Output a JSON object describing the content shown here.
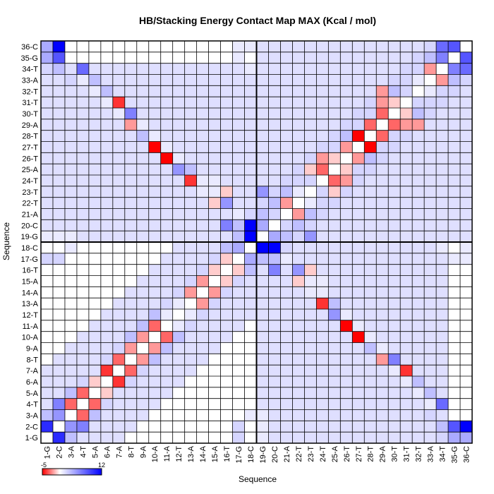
{
  "chart_data": {
    "type": "heatmap",
    "title": "HB/Stacking Energy Contact Map MAX (Kcal / mol)",
    "xlabel": "Sequence",
    "ylabel": "Sequence",
    "labels": [
      "1-G",
      "2-C",
      "3-A",
      "4-T",
      "5-A",
      "6-A",
      "7-A",
      "8-T",
      "9-A",
      "10-A",
      "11-A",
      "12-T",
      "13-A",
      "14-A",
      "15-A",
      "16-T",
      "17-G",
      "18-C",
      "19-G",
      "20-C",
      "21-A",
      "22-T",
      "23-T",
      "24-T",
      "25-A",
      "26-T",
      "27-T",
      "28-T",
      "29-A",
      "30-T",
      "31-T",
      "32-T",
      "33-A",
      "34-T",
      "35-G",
      "36-C"
    ],
    "colorbar": {
      "min": -5,
      "max": 12,
      "min_label": "-5",
      "max_label": "12",
      "low_color": "#ff0000",
      "mid_color": "#ffffff",
      "high_color": "#0000ff"
    },
    "divider_after_index": 18,
    "background_value": 1.5,
    "background_label_rows": [
      19,
      20,
      21,
      22,
      23,
      24,
      25,
      26,
      27,
      28,
      29,
      30,
      31,
      32,
      33,
      34
    ],
    "cells": [
      [
        1,
        2,
        10
      ],
      [
        1,
        3,
        3
      ],
      [
        1,
        36,
        4
      ],
      [
        1,
        35,
        4
      ],
      [
        1,
        34,
        2
      ],
      [
        2,
        3,
        5
      ],
      [
        2,
        4,
        6
      ],
      [
        2,
        36,
        12
      ],
      [
        2,
        35,
        8
      ],
      [
        2,
        34,
        3
      ],
      [
        3,
        4,
        -3
      ],
      [
        3,
        5,
        3
      ],
      [
        3,
        33,
        2
      ],
      [
        4,
        5,
        -3
      ],
      [
        4,
        6,
        2
      ],
      [
        4,
        33,
        1
      ],
      [
        4,
        34,
        7
      ],
      [
        5,
        6,
        -1
      ],
      [
        5,
        32,
        1
      ],
      [
        5,
        33,
        3
      ],
      [
        6,
        7,
        -4
      ],
      [
        6,
        8,
        2
      ],
      [
        6,
        31,
        1
      ],
      [
        6,
        32,
        3
      ],
      [
        7,
        8,
        -3
      ],
      [
        7,
        9,
        2
      ],
      [
        7,
        30,
        1
      ],
      [
        7,
        31,
        -4
      ],
      [
        8,
        9,
        -2
      ],
      [
        8,
        10,
        3
      ],
      [
        8,
        30,
        6
      ],
      [
        8,
        29,
        -2
      ],
      [
        9,
        10,
        -2
      ],
      [
        9,
        11,
        3
      ],
      [
        9,
        29,
        1
      ],
      [
        9,
        28,
        3
      ],
      [
        10,
        11,
        -3
      ],
      [
        10,
        12,
        3
      ],
      [
        10,
        27,
        -5
      ],
      [
        10,
        28,
        1
      ],
      [
        11,
        12,
        1
      ],
      [
        11,
        13,
        2
      ],
      [
        11,
        26,
        -5
      ],
      [
        11,
        27,
        1
      ],
      [
        12,
        13,
        1
      ],
      [
        12,
        14,
        2
      ],
      [
        12,
        25,
        5
      ],
      [
        12,
        26,
        1
      ],
      [
        13,
        14,
        -2
      ],
      [
        13,
        15,
        2
      ],
      [
        13,
        24,
        -4
      ],
      [
        13,
        25,
        3
      ],
      [
        14,
        15,
        -2
      ],
      [
        14,
        16,
        2
      ],
      [
        14,
        24,
        1
      ],
      [
        14,
        23,
        1
      ],
      [
        15,
        16,
        -1
      ],
      [
        15,
        17,
        2
      ],
      [
        15,
        22,
        -1
      ],
      [
        15,
        23,
        1
      ],
      [
        16,
        17,
        -1
      ],
      [
        16,
        18,
        3
      ],
      [
        16,
        20,
        6
      ],
      [
        16,
        22,
        5
      ],
      [
        17,
        18,
        4
      ],
      [
        17,
        19,
        8
      ],
      [
        17,
        20,
        3
      ],
      [
        17,
        21,
        1
      ],
      [
        18,
        19,
        12
      ],
      [
        18,
        20,
        12
      ],
      [
        18,
        21,
        2
      ],
      [
        19,
        20,
        4
      ],
      [
        19,
        21,
        3
      ],
      [
        19,
        22,
        2
      ],
      [
        19,
        23,
        5
      ],
      [
        20,
        21,
        2
      ],
      [
        20,
        22,
        3
      ],
      [
        20,
        23,
        2
      ],
      [
        21,
        22,
        -2
      ],
      [
        21,
        23,
        3
      ],
      [
        21,
        24,
        2
      ],
      [
        22,
        23,
        1
      ],
      [
        22,
        24,
        2
      ],
      [
        22,
        25,
        2
      ],
      [
        23,
        24,
        2
      ],
      [
        23,
        25,
        3
      ],
      [
        23,
        26,
        2
      ],
      [
        24,
        25,
        -3
      ],
      [
        24,
        26,
        2
      ],
      [
        24,
        27,
        2
      ],
      [
        25,
        26,
        -4
      ],
      [
        25,
        27,
        2
      ],
      [
        25,
        28,
        2
      ],
      [
        26,
        27,
        -2
      ],
      [
        26,
        28,
        3
      ],
      [
        26,
        29,
        2
      ],
      [
        27,
        28,
        -5
      ],
      [
        27,
        29,
        2
      ],
      [
        27,
        30,
        2
      ],
      [
        28,
        29,
        -3
      ],
      [
        28,
        30,
        2
      ],
      [
        28,
        31,
        2
      ],
      [
        29,
        30,
        -3
      ],
      [
        29,
        31,
        2
      ],
      [
        29,
        32,
        2
      ],
      [
        30,
        31,
        -4
      ],
      [
        30,
        32,
        3
      ],
      [
        30,
        33,
        2
      ],
      [
        31,
        32,
        2
      ],
      [
        31,
        33,
        2
      ],
      [
        31,
        34,
        2
      ],
      [
        32,
        33,
        1
      ],
      [
        32,
        34,
        2
      ],
      [
        32,
        35,
        2
      ],
      [
        33,
        34,
        -2
      ],
      [
        33,
        35,
        3
      ],
      [
        33,
        36,
        2
      ],
      [
        34,
        35,
        6
      ],
      [
        34,
        36,
        7
      ],
      [
        35,
        36,
        8
      ],
      [
        32,
        29,
        -2
      ],
      [
        31,
        29,
        -2
      ],
      [
        31,
        30,
        -1
      ],
      [
        30,
        29,
        -3
      ],
      [
        26,
        24,
        -2
      ],
      [
        25,
        23,
        -1
      ],
      [
        26,
        25,
        -1
      ],
      [
        23,
        16,
        -1
      ],
      [
        24,
        15,
        1
      ],
      [
        19,
        17,
        3
      ],
      [
        35,
        17,
        1
      ],
      [
        36,
        17,
        1
      ],
      [
        34,
        18,
        1
      ],
      [
        36,
        18,
        1
      ],
      [
        2,
        17,
        2
      ],
      [
        1,
        17,
        2
      ],
      [
        3,
        18,
        1
      ],
      [
        3,
        19,
        1
      ],
      [
        1,
        19,
        1
      ],
      [
        2,
        19,
        1
      ]
    ]
  }
}
